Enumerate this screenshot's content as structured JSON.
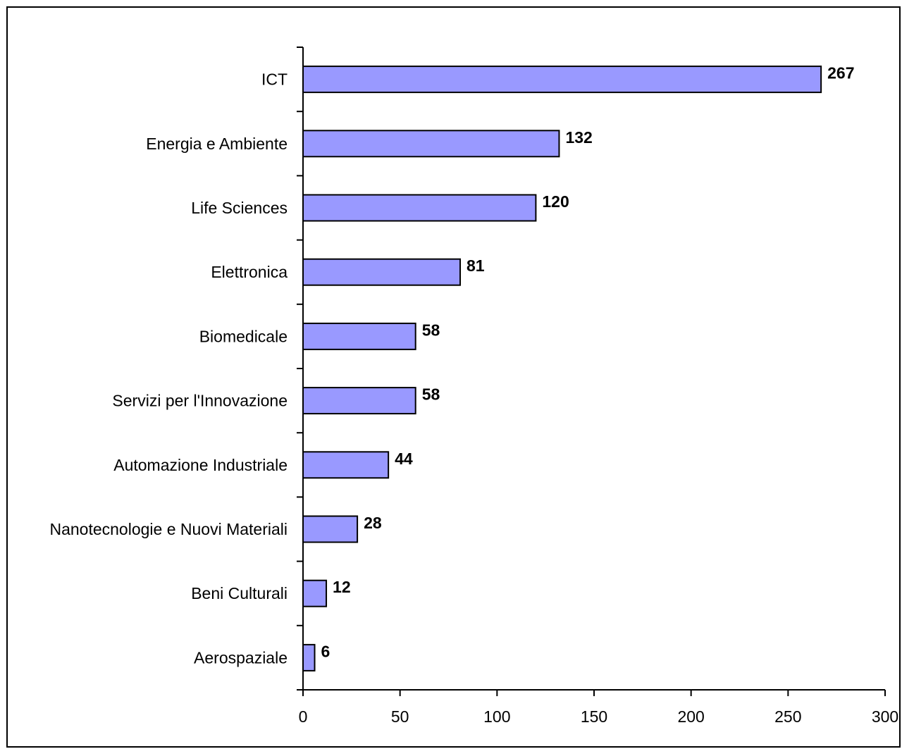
{
  "chart_data": {
    "type": "bar",
    "orientation": "horizontal",
    "categories": [
      "ICT",
      "Energia e Ambiente",
      "Life Sciences",
      "Elettronica",
      "Biomedicale",
      "Servizi per l'Innovazione",
      "Automazione Industriale",
      "Nanotecnologie e Nuovi Materiali",
      "Beni Culturali",
      "Aerospaziale"
    ],
    "values": [
      267,
      132,
      120,
      81,
      58,
      58,
      44,
      28,
      12,
      6
    ],
    "x_ticks": [
      "0",
      "50",
      "100",
      "150",
      "200",
      "250",
      "300"
    ],
    "xlim": [
      0,
      300
    ],
    "title": "",
    "xlabel": "",
    "ylabel": "",
    "grid": false,
    "legend": "none",
    "bar_color": "#9999ff",
    "bar_edge_color": "#000000"
  }
}
